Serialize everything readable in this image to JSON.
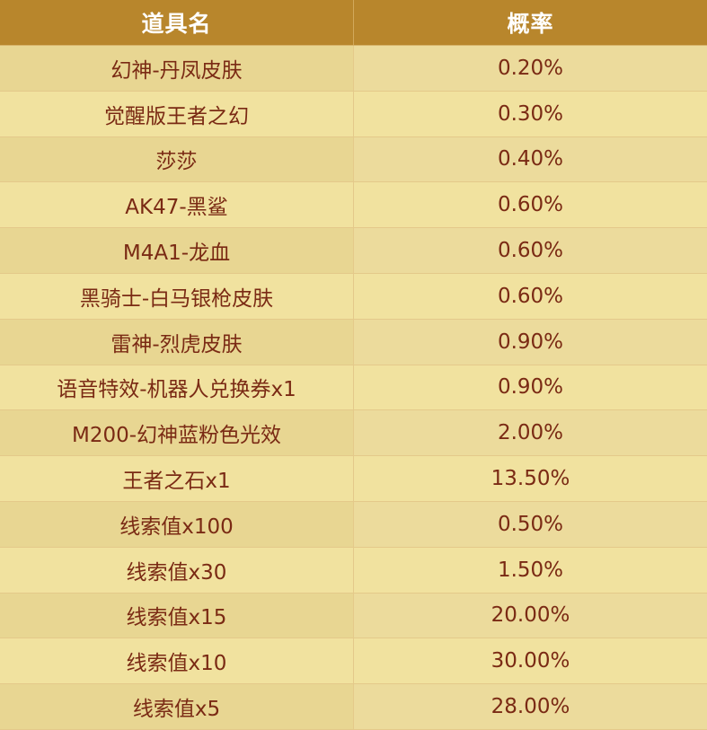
{
  "table": {
    "headers": {
      "item_name": "道具名",
      "probability": "概率"
    },
    "rows": [
      {
        "item": "幻神-丹凤皮肤",
        "probability": "0.20%"
      },
      {
        "item": "觉醒版王者之幻",
        "probability": "0.30%"
      },
      {
        "item": "莎莎",
        "probability": "0.40%"
      },
      {
        "item": "AK47-黑鲨",
        "probability": "0.60%"
      },
      {
        "item": "M4A1-龙血",
        "probability": "0.60%"
      },
      {
        "item": "黑骑士-白马银枪皮肤",
        "probability": "0.60%"
      },
      {
        "item": "雷神-烈虎皮肤",
        "probability": "0.90%"
      },
      {
        "item": "语音特效-机器人兑换券x1",
        "probability": "0.90%"
      },
      {
        "item": "M200-幻神蓝粉色光效",
        "probability": "2.00%"
      },
      {
        "item": "王者之石x1",
        "probability": "13.50%"
      },
      {
        "item": "线索值x100",
        "probability": "0.50%"
      },
      {
        "item": "线索值x30",
        "probability": "1.50%"
      },
      {
        "item": "线索值x15",
        "probability": "20.00%"
      },
      {
        "item": "线索值x10",
        "probability": "30.00%"
      },
      {
        "item": "线索值x5",
        "probability": "28.00%"
      }
    ]
  },
  "colors": {
    "header_background": "#b8862c",
    "header_text": "#ffffff",
    "row_background_a": "#ecdb9c",
    "row_background_b": "#f1e29f",
    "body_text": "#7a2a14"
  }
}
